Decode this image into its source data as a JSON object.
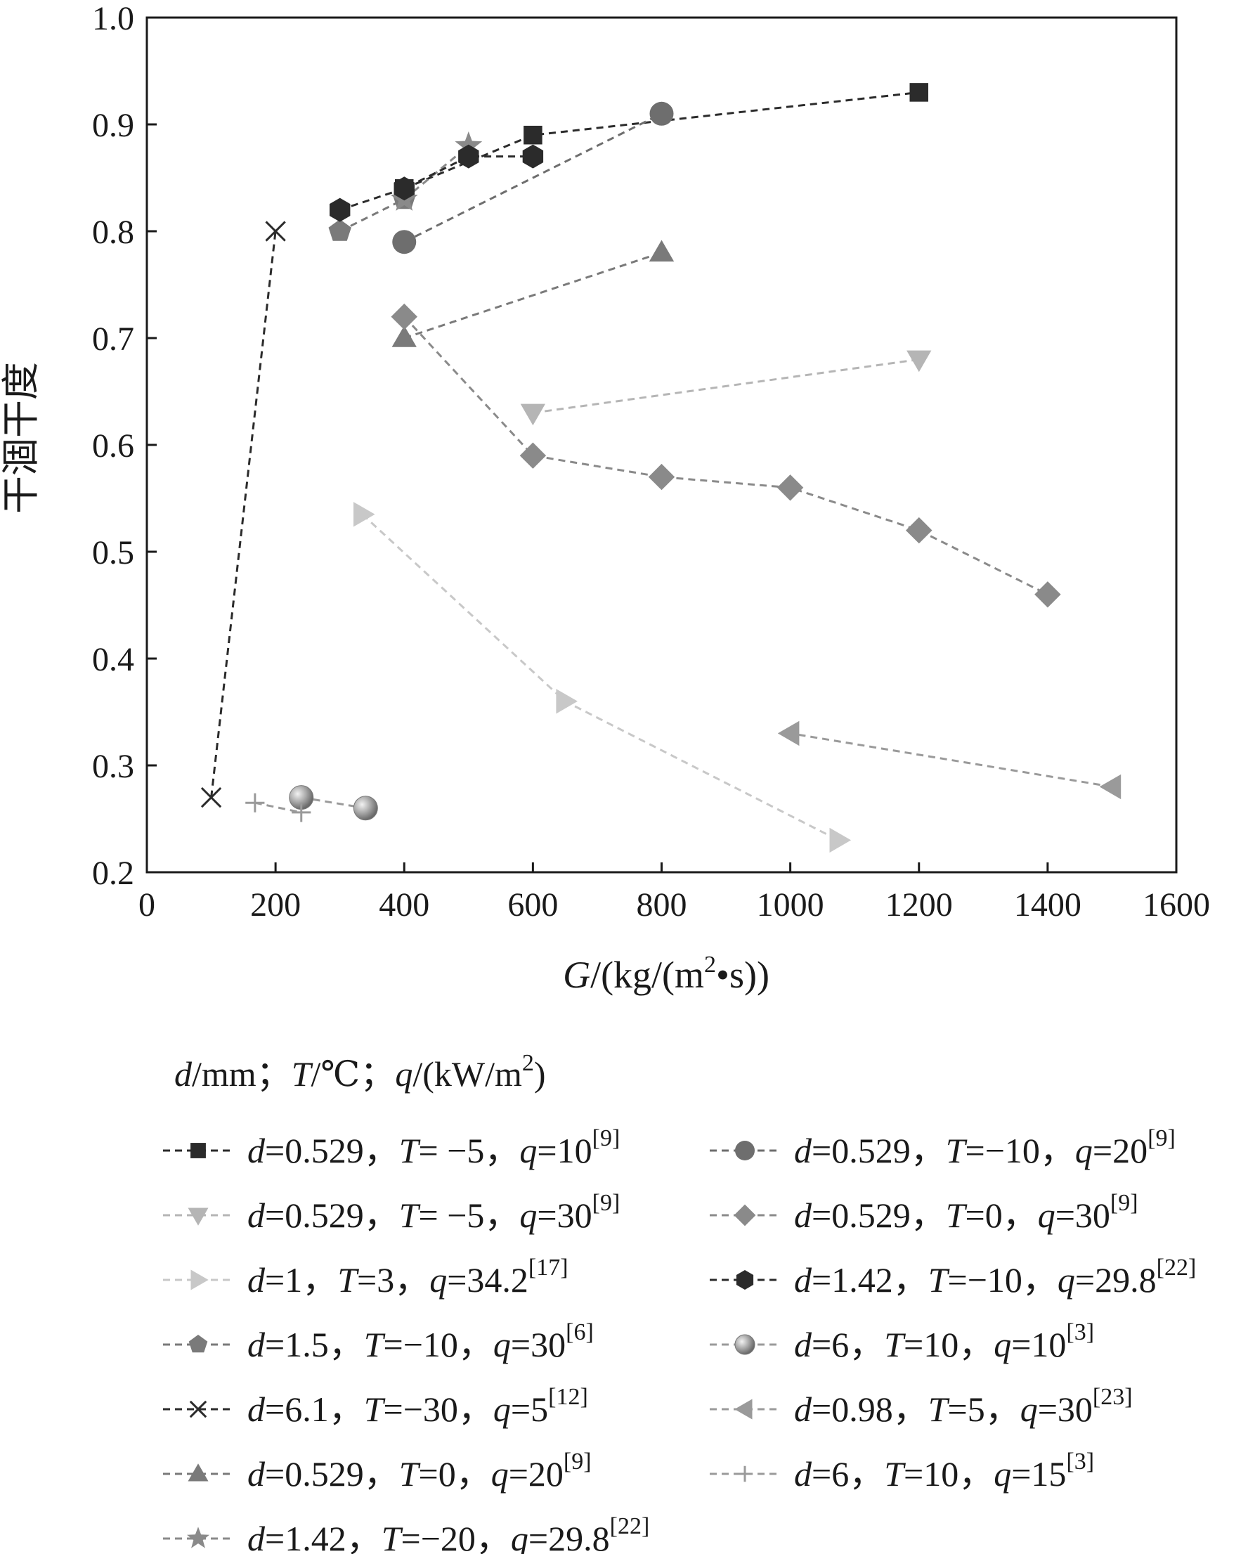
{
  "chart_data": {
    "type": "scatter",
    "title": "",
    "xlabel": {
      "var": "G",
      "rest": "/(kg/(m",
      "sup": "2",
      "tail": "•s))"
    },
    "ylabel": "干涸干度",
    "xlim": [
      0,
      1600
    ],
    "ylim": [
      0.2,
      1.0
    ],
    "x_ticks": [
      "0",
      "200",
      "400",
      "600",
      "800",
      "1000",
      "1200",
      "1400",
      "1600"
    ],
    "y_ticks": [
      "0.2",
      "0.3",
      "0.4",
      "0.5",
      "0.6",
      "0.7",
      "0.8",
      "0.9",
      "1.0"
    ],
    "grid": false,
    "legend_header": {
      "d": "d",
      "p1": "/mm；",
      "T": "T",
      "p2": "/℃；",
      "q": "q",
      "p3": "/(kW/m",
      "sup": "2",
      "p4": ")"
    },
    "series": [
      {
        "name": {
          "p1": "=0.529，",
          "p2": "= −5，",
          "p3": "=10",
          "ref": "[9]"
        },
        "marker": "square",
        "color": "#2b2b2b",
        "x": [
          400,
          600,
          1200
        ],
        "y": [
          0.84,
          0.89,
          0.93
        ]
      },
      {
        "name": {
          "p1": "=0.529，",
          "p2": "= −5，",
          "p3": "=30",
          "ref": "[9]"
        },
        "marker": "triangle-down",
        "color": "#b5b5b5",
        "x": [
          600,
          1200
        ],
        "y": [
          0.63,
          0.68
        ]
      },
      {
        "name": {
          "p1": "=1，",
          "p2": "=3，",
          "p3": "=34.2",
          "ref": "[17]"
        },
        "marker": "triangle-right",
        "color": "#c8c8c8",
        "x": [
          335,
          650,
          1075
        ],
        "y": [
          0.535,
          0.36,
          0.23
        ]
      },
      {
        "name": {
          "p1": "=1.5，",
          "p2": "=−10，",
          "p3": "=30",
          "ref": "[6]"
        },
        "marker": "pentagon",
        "color": "#7a7a7a",
        "x": [
          300,
          400
        ],
        "y": [
          0.8,
          0.83
        ]
      },
      {
        "name": {
          "p1": "=6.1，",
          "p2": "=−30，",
          "p3": "=5",
          "ref": "[12]"
        },
        "marker": "x",
        "color": "#2b2b2b",
        "x": [
          100,
          200
        ],
        "y": [
          0.27,
          0.8
        ]
      },
      {
        "name": {
          "p1": "=0.529，",
          "p2": "=0，",
          "p3": "=20",
          "ref": "[9]"
        },
        "marker": "triangle-up",
        "color": "#7a7a7a",
        "x": [
          400,
          800
        ],
        "y": [
          0.7,
          0.78
        ]
      },
      {
        "name": {
          "p1": "=1.42，",
          "p2": "=−20，",
          "p3": "=29.8",
          "ref": "[22]"
        },
        "marker": "star",
        "color": "#8a8a8a",
        "x": [
          400,
          500
        ],
        "y": [
          0.83,
          0.88
        ]
      },
      {
        "name": {
          "p1": "=0.529，",
          "p2": "=−10，",
          "p3": "=20",
          "ref": "[9]"
        },
        "marker": "circle",
        "color": "#6e6e6e",
        "x": [
          400,
          800
        ],
        "y": [
          0.79,
          0.91
        ]
      },
      {
        "name": {
          "p1": "=0.529，",
          "p2": "=0，",
          "p3": "=30",
          "ref": "[9]"
        },
        "marker": "diamond",
        "color": "#8a8a8a",
        "x": [
          400,
          600,
          800,
          1000,
          1200,
          1400
        ],
        "y": [
          0.72,
          0.59,
          0.57,
          0.56,
          0.52,
          0.46
        ]
      },
      {
        "name": {
          "p1": "=1.42，",
          "p2": "=−10，",
          "p3": "=29.8",
          "ref": "[22]"
        },
        "marker": "hexagon",
        "color": "#2b2b2b",
        "x": [
          300,
          400,
          500,
          600
        ],
        "y": [
          0.82,
          0.84,
          0.87,
          0.87
        ]
      },
      {
        "name": {
          "p1": "=6，",
          "p2": "=10，",
          "p3": "=10",
          "ref": "[3]"
        },
        "marker": "sphere",
        "color": "#9a9a9a",
        "x": [
          240,
          340
        ],
        "y": [
          0.27,
          0.26
        ]
      },
      {
        "name": {
          "p1": "=0.98，",
          "p2": "=5，",
          "p3": "=30",
          "ref": "[23]"
        },
        "marker": "triangle-left",
        "color": "#9a9a9a",
        "x": [
          1500,
          1000
        ],
        "y": [
          0.28,
          0.33
        ]
      },
      {
        "name": {
          "p1": "=6，",
          "p2": "=10，",
          "p3": "=15",
          "ref": "[3]"
        },
        "marker": "plus",
        "color": "#9a9a9a",
        "x": [
          168,
          240
        ],
        "y": [
          0.265,
          0.256
        ]
      }
    ]
  }
}
